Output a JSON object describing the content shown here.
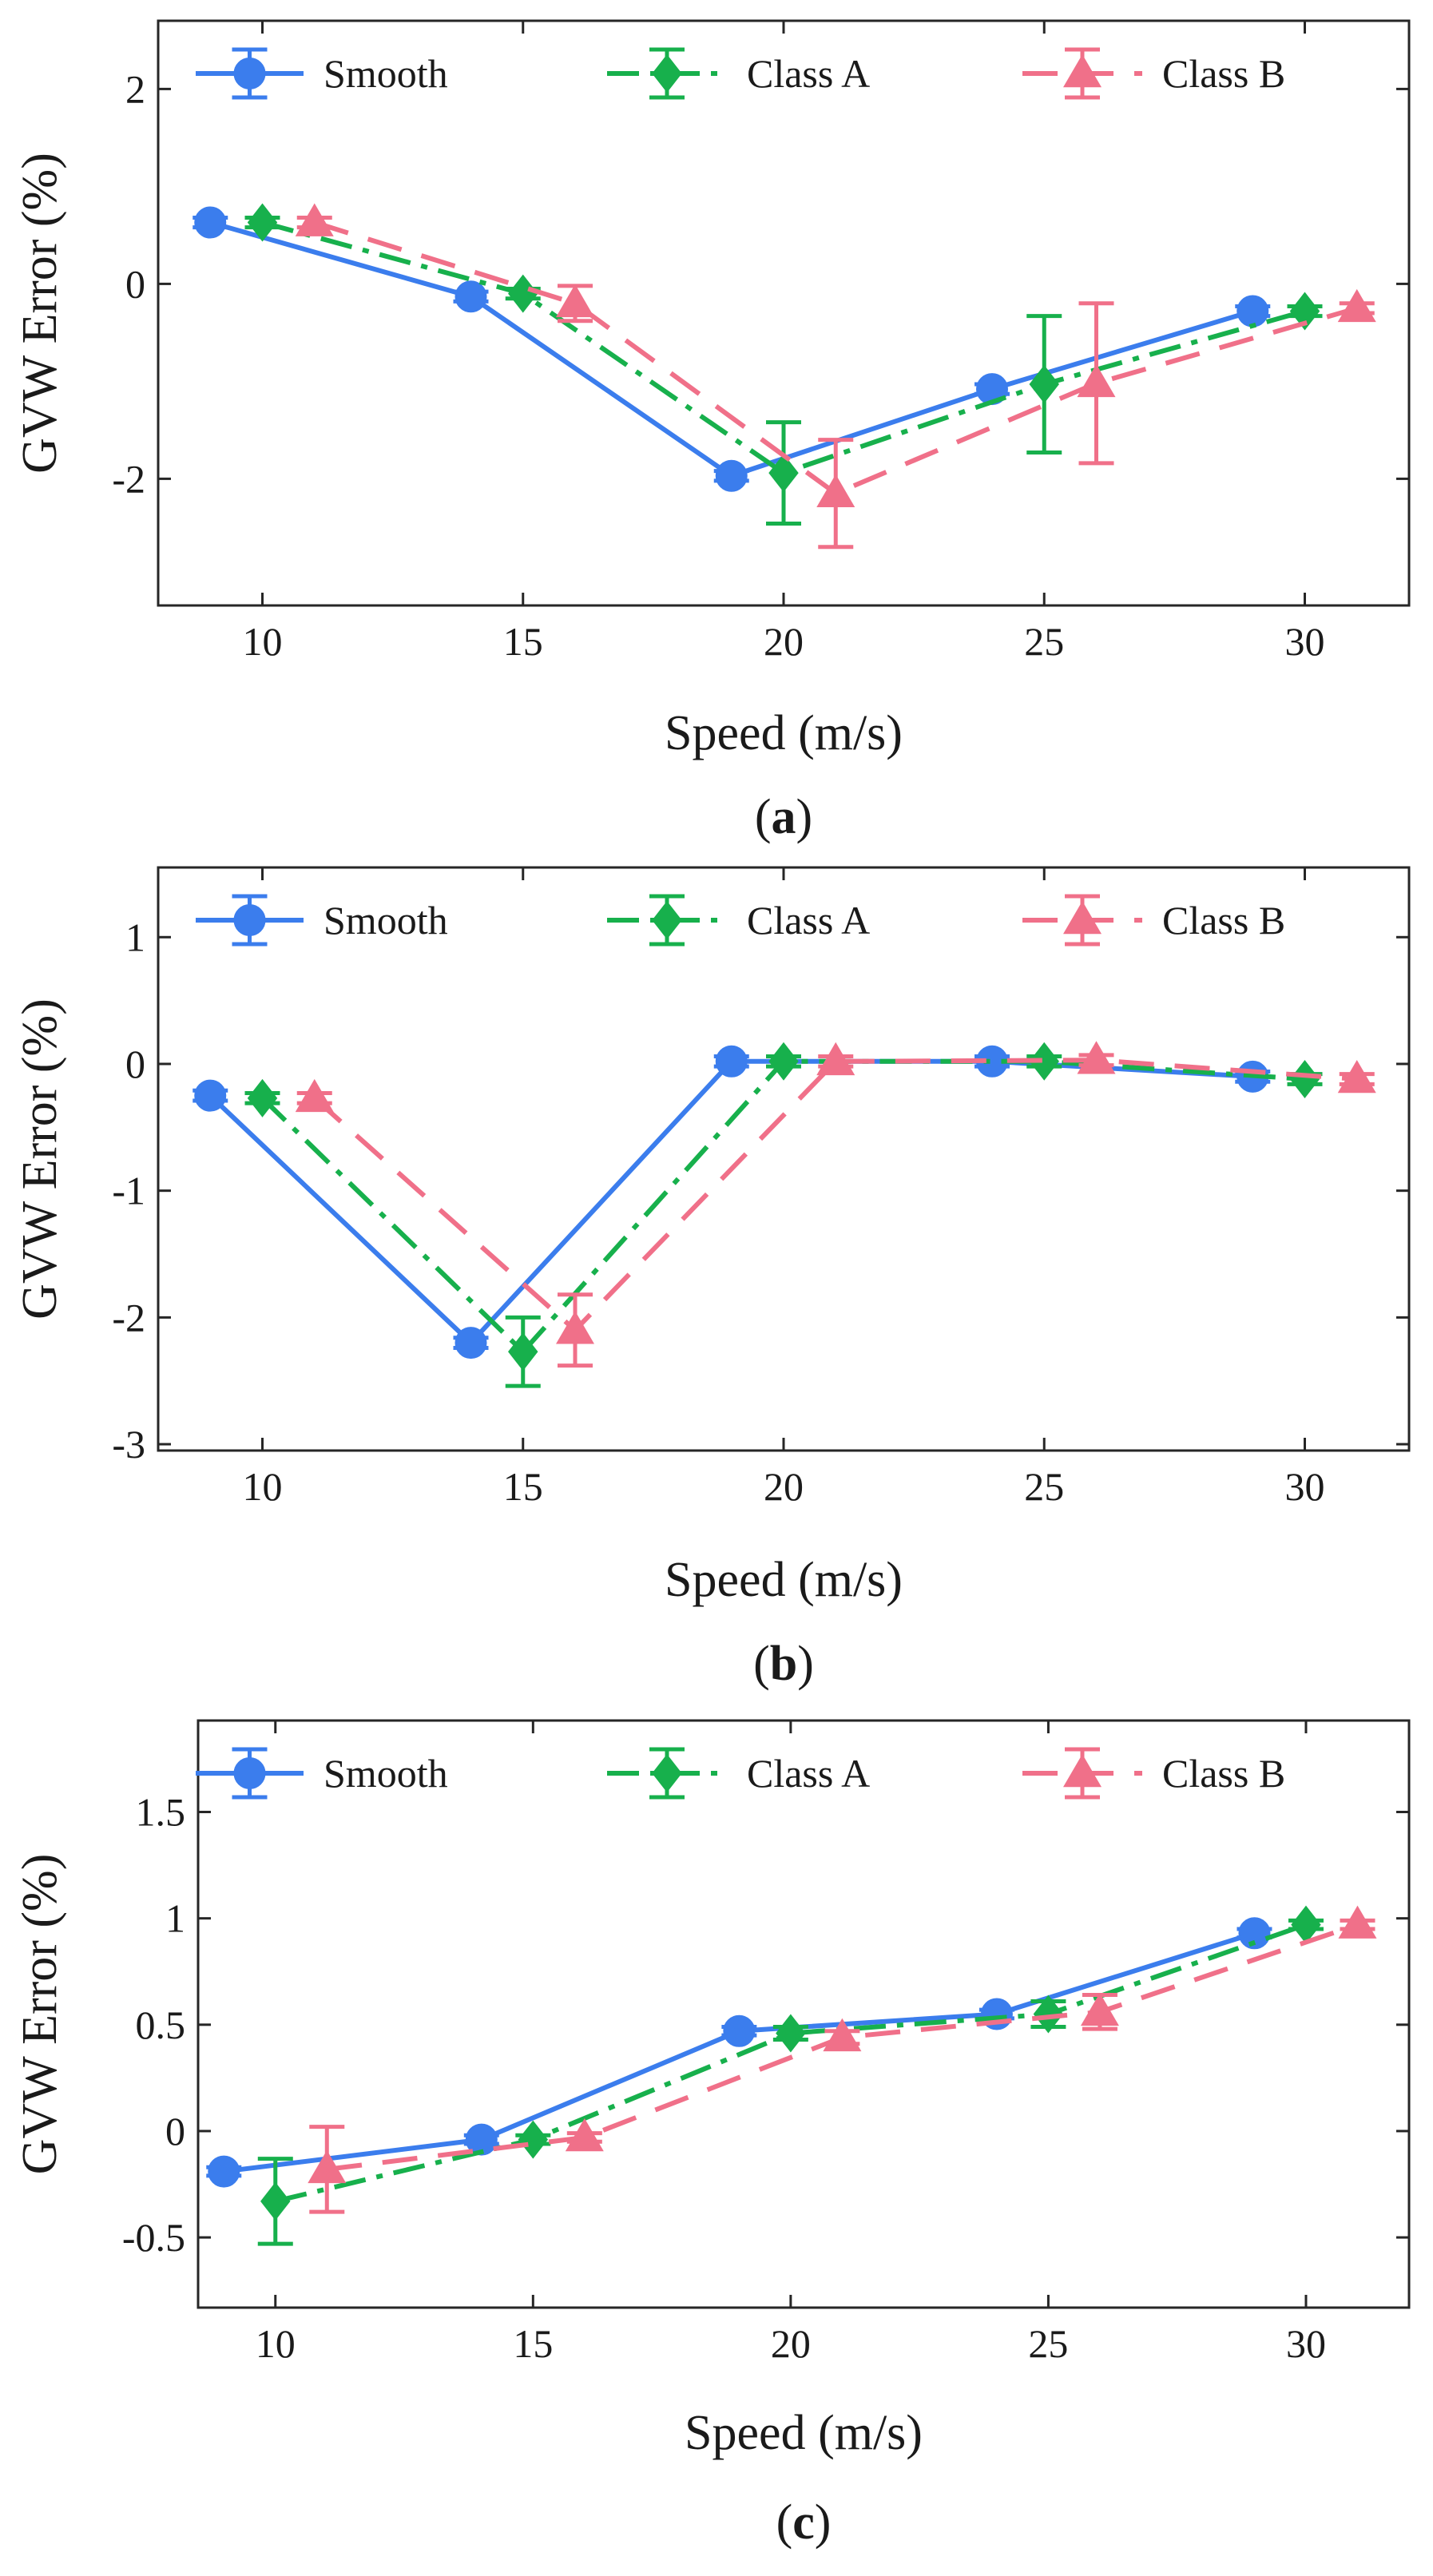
{
  "chart_data": [
    {
      "type": "line",
      "panel_label": "a",
      "caption_open": "(",
      "caption_close": ")",
      "xlabel": "Speed (m/s)",
      "ylabel": "GVW Error (%)",
      "xlim": [
        8,
        32
      ],
      "ylim": [
        -3.3,
        2.7
      ],
      "xticks": [
        10,
        15,
        20,
        25,
        30
      ],
      "yticks": [
        -2,
        0,
        2
      ],
      "legend_position": "top",
      "series": [
        {
          "name": "Smooth",
          "color": "#3b7ded",
          "line_style": "solid",
          "marker": "circle",
          "x": [
            9,
            14,
            19,
            24,
            29
          ],
          "y": [
            0.63,
            -0.13,
            -1.97,
            -1.08,
            -0.28
          ],
          "error": [
            0.05,
            0.05,
            0.05,
            0.05,
            0.05
          ]
        },
        {
          "name": "Class A",
          "color": "#17b04c",
          "line_style": "dashdot",
          "marker": "diamond",
          "x": [
            10,
            15,
            20,
            25,
            30
          ],
          "y": [
            0.63,
            -0.1,
            -1.94,
            -1.03,
            -0.28
          ],
          "error": [
            0.05,
            0.05,
            0.52,
            0.7,
            0.05
          ]
        },
        {
          "name": "Class B",
          "color": "#f07089",
          "line_style": "dashed",
          "marker": "triangle",
          "x": [
            11,
            16,
            21,
            26,
            31
          ],
          "y": [
            0.63,
            -0.2,
            -2.15,
            -1.02,
            -0.25
          ],
          "error": [
            0.05,
            0.18,
            0.55,
            0.82,
            0.05
          ]
        }
      ]
    },
    {
      "type": "line",
      "panel_label": "b",
      "caption_open": "(",
      "caption_close": ")",
      "xlabel": "Speed (m/s)",
      "ylabel": "GVW Error (%)",
      "xlim": [
        8,
        32
      ],
      "ylim": [
        -3.05,
        1.55
      ],
      "xticks": [
        10,
        15,
        20,
        25,
        30
      ],
      "yticks": [
        -3,
        -2,
        -1,
        0,
        1
      ],
      "legend_position": "top",
      "series": [
        {
          "name": "Smooth",
          "color": "#3b7ded",
          "line_style": "solid",
          "marker": "circle",
          "x": [
            9,
            14,
            19,
            24,
            29
          ],
          "y": [
            -0.25,
            -2.2,
            0.02,
            0.02,
            -0.1
          ],
          "error": [
            0.04,
            0.04,
            0.04,
            0.04,
            0.04
          ]
        },
        {
          "name": "Class A",
          "color": "#17b04c",
          "line_style": "dashdot",
          "marker": "diamond",
          "x": [
            10,
            15,
            20,
            25,
            30
          ],
          "y": [
            -0.27,
            -2.27,
            0.02,
            0.02,
            -0.12
          ],
          "error": [
            0.04,
            0.27,
            0.04,
            0.04,
            0.04
          ]
        },
        {
          "name": "Class B",
          "color": "#f07089",
          "line_style": "dashed",
          "marker": "triangle",
          "x": [
            11,
            16,
            21,
            26,
            31
          ],
          "y": [
            -0.27,
            -2.1,
            0.02,
            0.03,
            -0.12
          ],
          "error": [
            0.04,
            0.28,
            0.04,
            0.04,
            0.04
          ]
        }
      ]
    },
    {
      "type": "line",
      "panel_label": "c",
      "caption_open": "(",
      "caption_close": ")",
      "xlabel": "Speed (m/s)",
      "ylabel": "GVW Error (%)",
      "xlim": [
        8.5,
        32
      ],
      "ylim": [
        -0.83,
        1.93
      ],
      "xticks": [
        10,
        15,
        20,
        25,
        30
      ],
      "yticks": [
        -0.5,
        0,
        0.5,
        1,
        1.5
      ],
      "ytick_labels": [
        "-0.5",
        "0",
        "0.5",
        "1",
        "1.5"
      ],
      "legend_position": "top",
      "series": [
        {
          "name": "Smooth",
          "color": "#3b7ded",
          "line_style": "solid",
          "marker": "circle",
          "x": [
            9,
            14,
            19,
            24,
            29
          ],
          "y": [
            -0.19,
            -0.04,
            0.47,
            0.55,
            0.93
          ],
          "error": [
            0.02,
            0.02,
            0.02,
            0.02,
            0.02
          ]
        },
        {
          "name": "Class A",
          "color": "#17b04c",
          "line_style": "dashdot",
          "marker": "diamond",
          "x": [
            10,
            15,
            20,
            25,
            30
          ],
          "y": [
            -0.33,
            -0.04,
            0.46,
            0.55,
            0.97
          ],
          "error": [
            0.2,
            0.02,
            0.03,
            0.06,
            0.02
          ]
        },
        {
          "name": "Class B",
          "color": "#f07089",
          "line_style": "dashed",
          "marker": "triangle",
          "x": [
            11,
            16,
            21,
            26,
            31
          ],
          "y": [
            -0.18,
            -0.03,
            0.44,
            0.56,
            0.97
          ],
          "error": [
            0.2,
            0.02,
            0.03,
            0.08,
            0.02
          ]
        }
      ]
    }
  ]
}
